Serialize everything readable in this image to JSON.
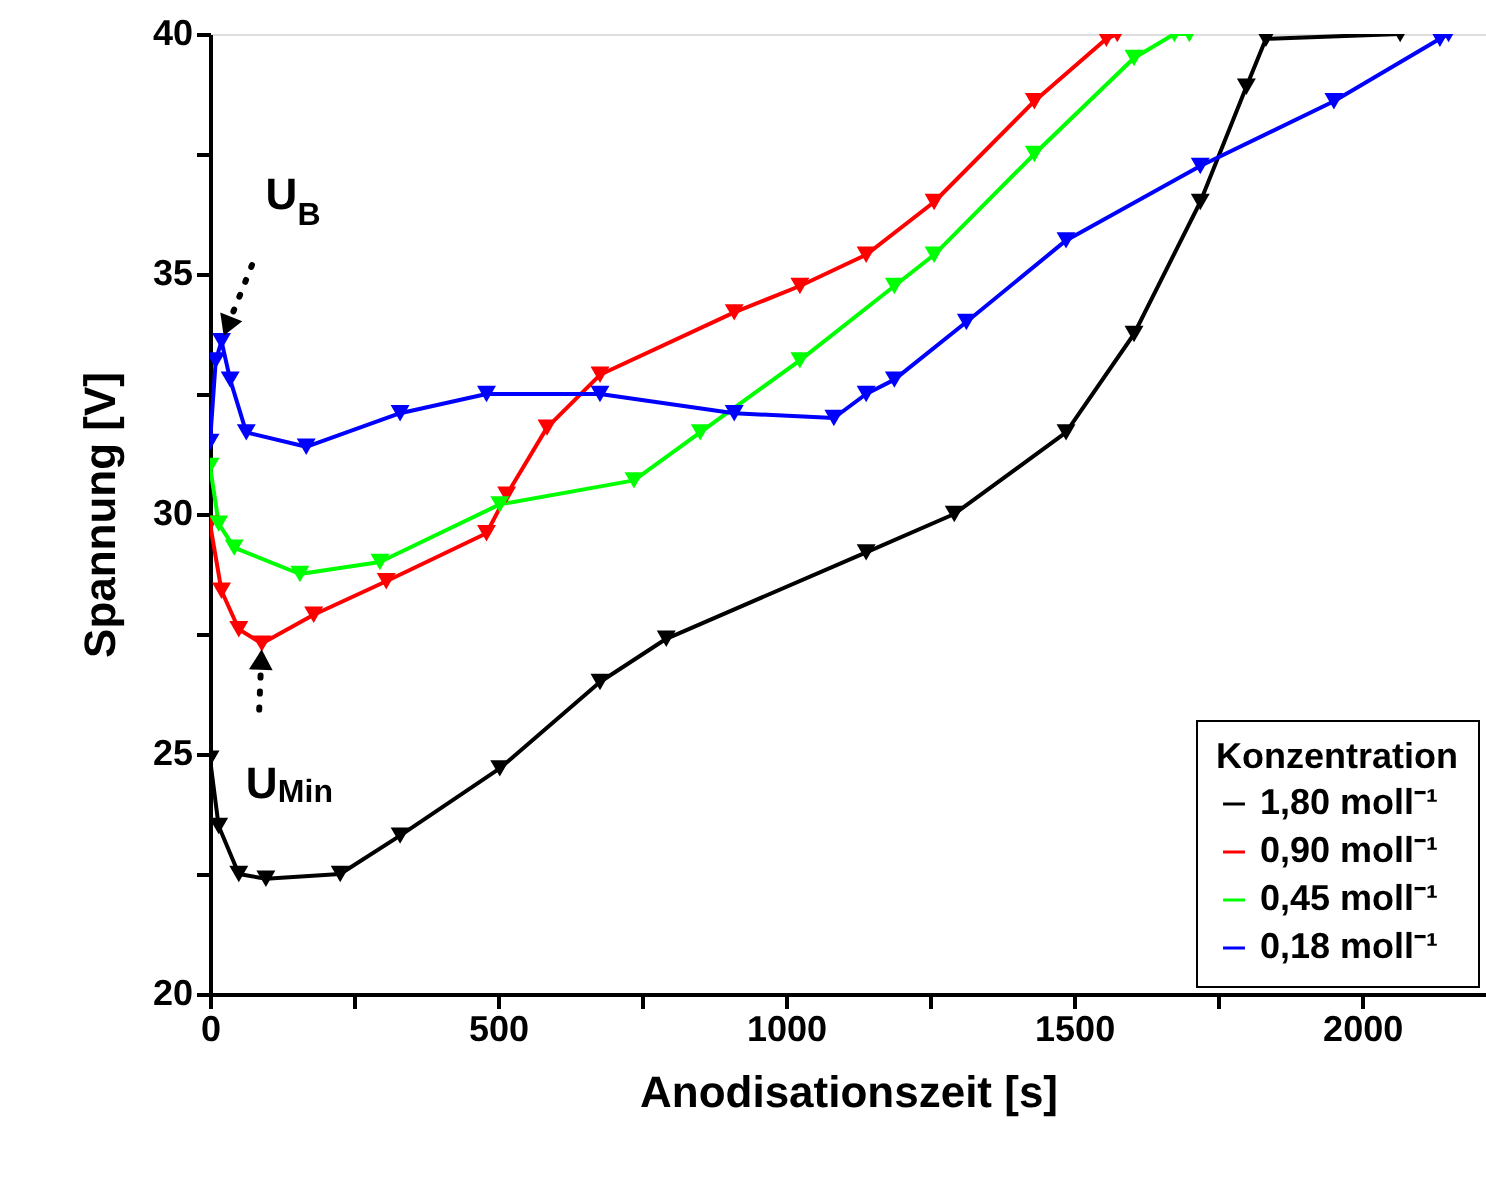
{
  "chart_data": {
    "type": "line",
    "xlabel": "Anodisationszeit [s]",
    "ylabel": "Spannung [V]",
    "legend_title": "Konzentration",
    "legend": "bottom right",
    "grid": false,
    "marker": "triangle",
    "line_style": "solid",
    "xlim": [
      0,
      2215
    ],
    "ylim": [
      20,
      40
    ],
    "xticks": [
      0,
      {
        "value": 250,
        "label": null
      },
      500,
      {
        "value": 750,
        "label": null
      },
      1000,
      {
        "value": 1250,
        "label": null
      },
      1500,
      {
        "value": 1750,
        "label": null
      },
      2000
    ],
    "yticks": [
      20,
      {
        "value": 22.5,
        "label": null
      },
      25,
      {
        "value": 27.5,
        "label": null
      },
      30,
      {
        "value": 32.5,
        "label": null
      },
      35,
      {
        "value": 37.5,
        "label": null
      },
      40
    ],
    "series": [
      {
        "name": "1,80 moll⁻¹",
        "color": "#000000",
        "x": [
          0,
          15,
          50,
          97,
          226,
          330,
          503,
          677,
          792,
          1139,
          1292,
          1486,
          1604,
          1719,
          1799,
          1833,
          2066
        ],
        "values": [
          24.9,
          23.5,
          22.5,
          22.4,
          22.5,
          23.3,
          24.7,
          26.5,
          27.4,
          29.2,
          30.0,
          31.7,
          33.75,
          36.5,
          38.9,
          39.9,
          40
        ]
      },
      {
        "name": "0,90 moll⁻¹",
        "color": "#ff0000",
        "x": [
          0,
          20,
          50,
          90,
          180,
          306,
          480,
          515,
          585,
          677,
          910,
          1024,
          1139,
          1257,
          1431,
          1556,
          1575
        ],
        "values": [
          29.8,
          28.4,
          27.6,
          27.3,
          27.9,
          28.6,
          29.6,
          30.4,
          31.8,
          32.9,
          34.2,
          34.75,
          35.4,
          36.5,
          38.6,
          39.9,
          40
        ]
      },
      {
        "name": "0,45 moll⁻¹",
        "color": "#00ff00",
        "x": [
          0,
          15,
          42,
          156,
          295,
          503,
          736,
          851,
          1024,
          1188,
          1257,
          1431,
          1604,
          1674,
          1700
        ],
        "values": [
          31.0,
          29.8,
          29.3,
          28.75,
          29.0,
          30.2,
          30.7,
          31.7,
          33.2,
          34.75,
          35.4,
          37.5,
          39.5,
          40,
          40
        ]
      },
      {
        "name": "0,18 moll⁻¹",
        "color": "#0000ff",
        "x": [
          0,
          10,
          20,
          35,
          63,
          167,
          330,
          480,
          677,
          910,
          1083,
          1139,
          1188,
          1313,
          1486,
          1719,
          1951,
          2135,
          2150
        ],
        "values": [
          31.5,
          33.2,
          33.6,
          32.8,
          31.7,
          31.4,
          32.1,
          32.5,
          32.5,
          32.1,
          32.0,
          32.5,
          32.8,
          34.0,
          35.7,
          37.25,
          38.6,
          39.9,
          40
        ]
      }
    ],
    "annotations": [
      {
        "text": "U$_{B}$",
        "x": 20,
        "y": 33.6
      },
      {
        "text": "U$_{Min}$",
        "x": 90,
        "y": 27.3
      }
    ]
  }
}
